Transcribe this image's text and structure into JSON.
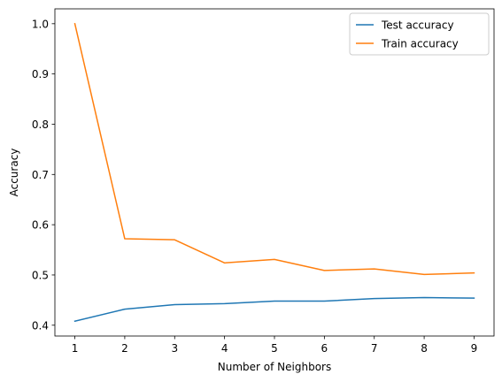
{
  "chart_data": {
    "type": "line",
    "xlabel": "Number of Neighbors",
    "ylabel": "Accuracy",
    "x": [
      1,
      2,
      3,
      4,
      5,
      6,
      7,
      8,
      9
    ],
    "xticks": [
      "1",
      "2",
      "3",
      "4",
      "5",
      "6",
      "7",
      "8",
      "9"
    ],
    "yticks": [
      "0.4",
      "0.5",
      "0.6",
      "0.7",
      "0.8",
      "0.9",
      "1.0"
    ],
    "xlim": [
      0.6,
      9.4
    ],
    "ylim": [
      0.3785,
      1.0296
    ],
    "grid": false,
    "legend_position": "top-right",
    "series": [
      {
        "name": "Test accuracy",
        "color": "#1f77b4",
        "values": [
          0.408,
          0.432,
          0.441,
          0.443,
          0.448,
          0.448,
          0.453,
          0.455,
          0.454
        ]
      },
      {
        "name": "Train accuracy",
        "color": "#ff7f0e",
        "values": [
          1.0,
          0.572,
          0.57,
          0.524,
          0.531,
          0.509,
          0.512,
          0.501,
          0.504
        ]
      }
    ]
  }
}
